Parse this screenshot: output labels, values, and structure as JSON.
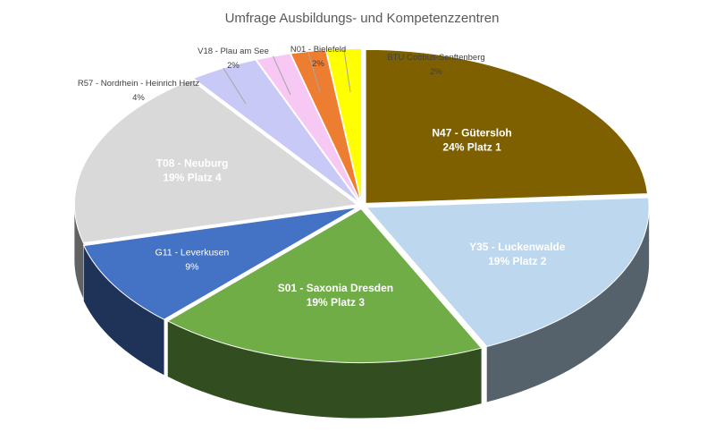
{
  "chart_data": {
    "type": "pie",
    "title": "Umfrage Ausbildungs- und Kompetenzzentren",
    "slices": [
      {
        "label": "N47 - Gütersloh",
        "value": 24,
        "value_text": "24% Platz 1",
        "color": "#7F6000"
      },
      {
        "label": "Y35 - Luckenwalde",
        "value": 19,
        "value_text": "19% Platz 2",
        "color": "#BDD7EE"
      },
      {
        "label": "S01 - Saxonia Dresden",
        "value": 19,
        "value_text": "19% Platz 3",
        "color": "#70AD47"
      },
      {
        "label": "G11 - Leverkusen",
        "value": 9,
        "value_text": "9%",
        "color": "#4472C4"
      },
      {
        "label": "T08 - Neuburg",
        "value": 19,
        "value_text": "19% Platz 4",
        "color": "#D9D9D9"
      },
      {
        "label": "R57 - Nordrhein - Heinrich Hertz",
        "value": 4,
        "value_text": "4%",
        "color": "#C9C9F8"
      },
      {
        "label": "V18 - Plau am See",
        "value": 2,
        "value_text": "2%",
        "color": "#F8C8F4"
      },
      {
        "label": "N01 - Bielefeld",
        "value": 2,
        "value_text": "2%",
        "color": "#ED7D31"
      },
      {
        "label": "BTU Cottbus-Senftenberg",
        "value": 2,
        "value_text": "2%",
        "color": "#FFFF00"
      }
    ],
    "style": "3d-exploded"
  }
}
